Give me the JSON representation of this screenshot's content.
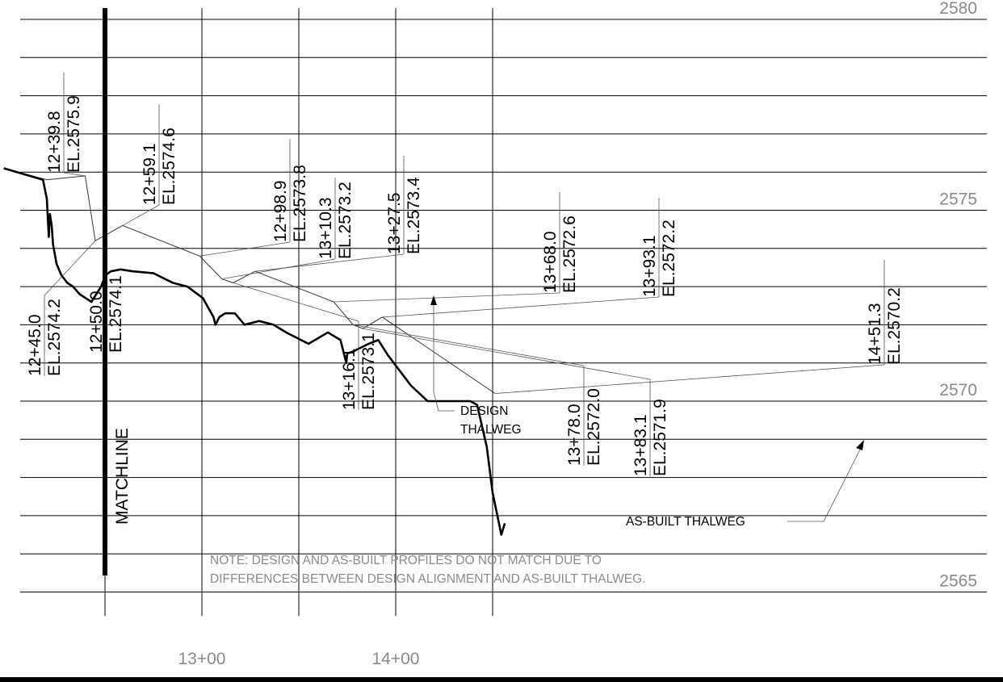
{
  "chart_data": {
    "type": "line",
    "title": "",
    "xlabel": "",
    "ylabel": "",
    "xlim": [
      1197.8,
      1456.3
    ],
    "ylim": [
      2564,
      2580.5
    ],
    "grid": true,
    "x_tick_labels": [
      {
        "station": 1300,
        "label": "13+00"
      },
      {
        "station": 1400,
        "label": "14+00"
      }
    ],
    "y_tick_labels": [
      {
        "elev": 2580,
        "label": "2580"
      },
      {
        "elev": 2575,
        "label": "2575"
      },
      {
        "elev": 2570,
        "label": "2570"
      },
      {
        "elev": 2565,
        "label": "2565"
      }
    ],
    "matchline": {
      "station": 1250,
      "label": "MATCHLINE"
    },
    "series": [
      {
        "key": "design",
        "x": [
          1197.8,
          1220.0,
          1239.8,
          1245.0,
          1259.1,
          1298.9,
          1310.3,
          1316.1,
          1327.5,
          1368.0,
          1378.0,
          1383.1,
          1393.1,
          1451.3
        ],
        "y": [
          2576.1,
          2575.8,
          2575.9,
          2574.2,
          2574.6,
          2573.8,
          2573.2,
          2573.1,
          2573.4,
          2572.6,
          2572.0,
          2571.9,
          2572.2,
          2570.2
        ]
      },
      {
        "key": "as-built",
        "x": [
          1197.8,
          1218.0,
          1220.0,
          1221.0,
          1221.6,
          1222.5,
          1223.2,
          1225.0,
          1227.5,
          1230.5,
          1233.5,
          1237.0,
          1243.0,
          1248.0,
          1250.3,
          1253.0,
          1258.0,
          1264.5,
          1275.0,
          1285.0,
          1292.5,
          1300.5,
          1306.0,
          1307.0,
          1309.0,
          1312.0,
          1317.0,
          1322.0,
          1329.5,
          1337.0,
          1343.5,
          1355.0,
          1365.0,
          1371.5,
          1374.5,
          1375.0,
          1378.0,
          1386.0,
          1391.0,
          1396.0,
          1408.0,
          1416.5,
          1432.0,
          1438.5,
          1442.0,
          1447.0,
          1450.0,
          1454.5,
          1456.3
        ],
        "y": [
          2576.1,
          2575.8,
          2575.3,
          2574.3,
          2574.9,
          2574.6,
          2574.1,
          2573.6,
          2573.3,
          2573.1,
          2573.0,
          2572.8,
          2572.6,
          2573.0,
          2573.3,
          2573.4,
          2573.45,
          2573.4,
          2573.35,
          2573.1,
          2573.0,
          2572.7,
          2572.2,
          2572.0,
          2572.2,
          2572.3,
          2572.3,
          2572.0,
          2572.1,
          2572.0,
          2571.8,
          2571.5,
          2571.8,
          2571.6,
          2571.0,
          2571.25,
          2571.3,
          2571.5,
          2571.6,
          2571.2,
          2570.4,
          2570.0,
          2570.0,
          2570.0,
          2569.9,
          2568.8,
          2567.6,
          2566.5,
          2566.8
        ]
      }
    ],
    "callouts": [
      {
        "sta": "12+39.8",
        "el": "EL.2575.9"
      },
      {
        "sta": "12+45.0",
        "el": "EL.2574.2"
      },
      {
        "sta": "12+50.0",
        "el": "EL.2574.1"
      },
      {
        "sta": "12+59.1",
        "el": "EL.2574.6"
      },
      {
        "sta": "12+98.9",
        "el": "EL.2573.8"
      },
      {
        "sta": "13+10.3",
        "el": "EL.2573.2"
      },
      {
        "sta": "13+16.1",
        "el": "EL.2573.1"
      },
      {
        "sta": "13+27.5",
        "el": "EL.2573.4"
      },
      {
        "sta": "13+68.0",
        "el": "EL.2572.6"
      },
      {
        "sta": "13+78.0",
        "el": "EL.2572.0"
      },
      {
        "sta": "13+83.1",
        "el": "EL.2571.9"
      },
      {
        "sta": "13+93.1",
        "el": "EL.2572.2"
      },
      {
        "sta": "14+51.3",
        "el": "EL.2570.2"
      }
    ],
    "annotations": {
      "design_thalweg": [
        "DESIGN",
        "THALWEG"
      ],
      "as_built_thalweg": "AS-BUILT THALWEG"
    },
    "note": [
      "NOTE:  DESIGN AND AS-BUILT PROFILES DO NOT MATCH DUE TO",
      "DIFFERENCES BETWEEN DESIGN ALIGNMENT AND AS-BUILT THALWEG."
    ]
  }
}
